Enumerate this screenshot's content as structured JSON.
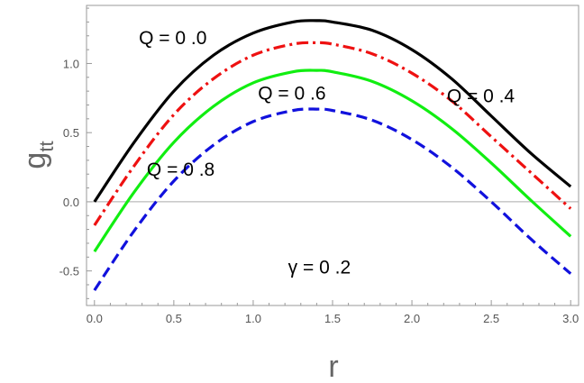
{
  "chart_data": {
    "type": "line",
    "xlabel": "r",
    "ylabel": "g",
    "ylabel_sub": "tt",
    "xlim": [
      -0.05,
      3.05
    ],
    "ylim": [
      -0.75,
      1.42
    ],
    "xticks": [
      0.0,
      0.5,
      1.0,
      1.5,
      2.0,
      2.5,
      3.0
    ],
    "xtick_labels": [
      "0.0",
      "0.5",
      "1.0",
      "1.5",
      "2.0",
      "2.5",
      "3.0"
    ],
    "yticks": [
      -0.5,
      0.0,
      0.5,
      1.0
    ],
    "ytick_labels": [
      "-0.5",
      "0.0",
      "0.5",
      "1.0"
    ],
    "grid": false,
    "zero_line": true,
    "series": [
      {
        "name": "Q = 0 .0",
        "color": "#000000",
        "dash": "solid",
        "x": [
          0.0,
          0.25,
          0.5,
          0.75,
          1.0,
          1.25,
          1.4,
          1.5,
          1.75,
          2.0,
          2.25,
          2.5,
          2.75,
          3.0
        ],
        "y": [
          0.0,
          0.43,
          0.8,
          1.06,
          1.22,
          1.3,
          1.31,
          1.3,
          1.24,
          1.1,
          0.89,
          0.62,
          0.35,
          0.11
        ]
      },
      {
        "name": "Q = 0 .4",
        "color": "#ee1111",
        "dash": "dashdot",
        "x": [
          0.0,
          0.25,
          0.5,
          0.75,
          1.0,
          1.25,
          1.4,
          1.5,
          1.75,
          2.0,
          2.25,
          2.5,
          2.75,
          3.0
        ],
        "y": [
          -0.17,
          0.26,
          0.63,
          0.89,
          1.06,
          1.14,
          1.15,
          1.14,
          1.07,
          0.93,
          0.73,
          0.47,
          0.21,
          -0.05
        ]
      },
      {
        "name": "Q = 0 .6",
        "color": "#11ee11",
        "dash": "solid",
        "x": [
          0.0,
          0.25,
          0.5,
          0.75,
          1.0,
          1.25,
          1.4,
          1.5,
          1.75,
          2.0,
          2.25,
          2.5,
          2.75,
          3.0
        ],
        "y": [
          -0.36,
          0.07,
          0.43,
          0.69,
          0.86,
          0.94,
          0.95,
          0.94,
          0.87,
          0.73,
          0.53,
          0.28,
          0.01,
          -0.25
        ]
      },
      {
        "name": "Q = 0 .8",
        "color": "#1111dd",
        "dash": "dashed",
        "x": [
          0.0,
          0.25,
          0.5,
          0.75,
          1.0,
          1.25,
          1.4,
          1.5,
          1.75,
          2.0,
          2.25,
          2.5,
          2.75,
          3.0
        ],
        "y": [
          -0.64,
          -0.21,
          0.15,
          0.41,
          0.58,
          0.66,
          0.67,
          0.66,
          0.59,
          0.45,
          0.25,
          0.0,
          -0.27,
          -0.52
        ]
      }
    ],
    "annotations": [
      {
        "text": "Q = 0 .0",
        "x": 0.28,
        "y": 1.14
      },
      {
        "text": "Q = 0 .4",
        "x": 2.22,
        "y": 0.72
      },
      {
        "text": "Q = 0 .6",
        "x": 1.03,
        "y": 0.74
      },
      {
        "text": "Q = 0 .8",
        "x": 0.33,
        "y": 0.19
      },
      {
        "text": "γ = 0 .2",
        "x": 1.22,
        "y": -0.52
      }
    ]
  }
}
